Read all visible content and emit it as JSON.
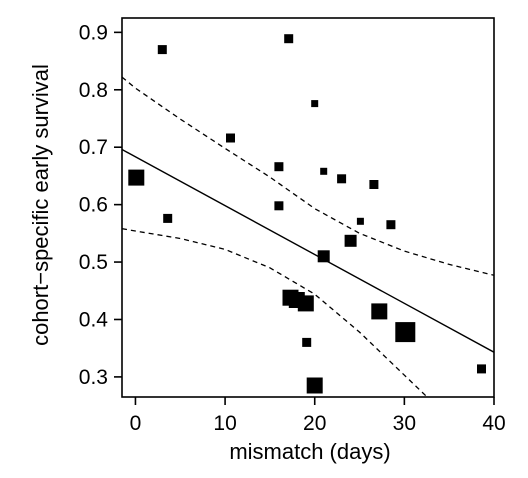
{
  "chart_data": {
    "type": "scatter",
    "title": "",
    "xlabel": "mismatch (days)",
    "ylabel": "cohort−specific early survival",
    "xlim": [
      -1.5,
      40
    ],
    "ylim": [
      0.265,
      0.925
    ],
    "x_ticks": [
      0,
      10,
      20,
      30,
      40
    ],
    "x_tick_labels": [
      "0",
      "10",
      "20",
      "30",
      "40"
    ],
    "y_ticks": [
      0.3,
      0.4,
      0.5,
      0.6,
      0.7,
      0.8,
      0.9
    ],
    "y_tick_labels": [
      "0.3",
      "0.4",
      "0.5",
      "0.6",
      "0.7",
      "0.8",
      "0.9"
    ],
    "grid": false,
    "legend": "none",
    "marker": "square",
    "marker_color": "#000000",
    "points": [
      {
        "x": 0.1,
        "y": 0.647,
        "size": 3
      },
      {
        "x": 3.0,
        "y": 0.87,
        "size": 1
      },
      {
        "x": 3.6,
        "y": 0.576,
        "size": 1
      },
      {
        "x": 10.6,
        "y": 0.716,
        "size": 1
      },
      {
        "x": 16.0,
        "y": 0.666,
        "size": 1
      },
      {
        "x": 16.0,
        "y": 0.598,
        "size": 1
      },
      {
        "x": 17.1,
        "y": 0.889,
        "size": 1
      },
      {
        "x": 17.3,
        "y": 0.438,
        "size": 3
      },
      {
        "x": 18.0,
        "y": 0.434,
        "size": 3
      },
      {
        "x": 19.0,
        "y": 0.428,
        "size": 3
      },
      {
        "x": 19.1,
        "y": 0.36,
        "size": 1
      },
      {
        "x": 20.0,
        "y": 0.776,
        "size": 0
      },
      {
        "x": 20.0,
        "y": 0.285,
        "size": 3
      },
      {
        "x": 21.0,
        "y": 0.658,
        "size": 0
      },
      {
        "x": 21.0,
        "y": 0.51,
        "size": 2
      },
      {
        "x": 23.0,
        "y": 0.645,
        "size": 1
      },
      {
        "x": 24.0,
        "y": 0.537,
        "size": 2
      },
      {
        "x": 25.1,
        "y": 0.571,
        "size": 0
      },
      {
        "x": 26.6,
        "y": 0.635,
        "size": 1
      },
      {
        "x": 27.2,
        "y": 0.414,
        "size": 3
      },
      {
        "x": 28.5,
        "y": 0.565,
        "size": 1
      },
      {
        "x": 30.1,
        "y": 0.378,
        "size": 4
      },
      {
        "x": 38.6,
        "y": 0.314,
        "size": 1
      }
    ],
    "fit_line": {
      "x": [
        -1.5,
        40
      ],
      "y": [
        0.696,
        0.343
      ],
      "style": "solid"
    },
    "confidence_band": {
      "style": "dashed",
      "upper": {
        "x": [
          -1.5,
          0,
          5,
          10,
          15,
          20,
          25,
          30,
          35,
          40
        ],
        "y": [
          0.822,
          0.803,
          0.749,
          0.698,
          0.648,
          0.593,
          0.55,
          0.519,
          0.496,
          0.477
        ]
      },
      "lower": {
        "x": [
          -1.5,
          0,
          5,
          10,
          15,
          20,
          25,
          30,
          35,
          36.5
        ],
        "y": [
          0.558,
          0.554,
          0.541,
          0.522,
          0.49,
          0.444,
          0.378,
          0.303,
          0.228,
          0.205
        ]
      }
    }
  }
}
